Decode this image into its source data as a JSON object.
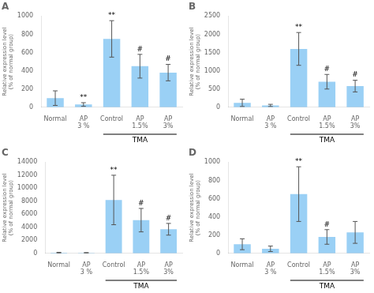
{
  "chart_data": [
    {
      "type": "bar",
      "title": "A",
      "categories": [
        "Normal",
        "AP\n3 %",
        "Control",
        "AP\n1.5%",
        "AP\n3%"
      ],
      "values": [
        100,
        30,
        750,
        450,
        380
      ],
      "errors": [
        80,
        20,
        200,
        130,
        90
      ],
      "ylim": [
        0,
        1000
      ],
      "yticks": [
        0,
        200,
        400,
        600,
        800,
        1000
      ],
      "ylabel": "Relative expression level\n(% of normal group)",
      "grid": false,
      "annotations": [
        {
          "text": "**",
          "x": "AP\n3 %"
        },
        {
          "text": "**",
          "x": "Control"
        },
        {
          "text": "#",
          "x": "AP\n1.5%"
        },
        {
          "text": "#",
          "x": "AP\n3%"
        },
        {
          "text": "TMA",
          "x": [
            "Control",
            "AP\n1.5%",
            "AP\n3%"
          ]
        }
      ]
    },
    {
      "type": "bar",
      "title": "B",
      "categories": [
        "Normal",
        "AP\n3 %",
        "Control",
        "AP\n1.5%",
        "AP\n3%"
      ],
      "values": [
        120,
        50,
        1600,
        700,
        580
      ],
      "errors": [
        100,
        30,
        450,
        200,
        160
      ],
      "ylim": [
        0,
        2500
      ],
      "yticks": [
        0,
        500,
        1000,
        1500,
        2000,
        2500
      ],
      "ylabel": "Relative expression level\n(% of normal group)",
      "grid": false,
      "annotations": [
        {
          "text": "**",
          "x": "Control"
        },
        {
          "text": "#",
          "x": "AP\n1.5%"
        },
        {
          "text": "#",
          "x": "AP\n3%"
        },
        {
          "text": "TMA",
          "x": [
            "Control",
            "AP\n1.5%",
            "AP\n3%"
          ]
        }
      ]
    },
    {
      "type": "bar",
      "title": "C",
      "categories": [
        "Normal",
        "AP\n3 %",
        "Control",
        "AP\n1.5%",
        "AP\n3%"
      ],
      "values": [
        100,
        80,
        8200,
        5100,
        3700
      ],
      "errors": [
        60,
        40,
        3800,
        1800,
        900
      ],
      "ylim": [
        0,
        14000
      ],
      "yticks": [
        0,
        2000,
        4000,
        6000,
        8000,
        10000,
        12000,
        14000
      ],
      "ylabel": "Relative expression level\n(% of normal group)",
      "grid": false,
      "annotations": [
        {
          "text": "**",
          "x": "Control"
        },
        {
          "text": "#",
          "x": "AP\n1.5%"
        },
        {
          "text": "#",
          "x": "AP\n3%"
        },
        {
          "text": "TMA",
          "x": [
            "Control",
            "AP\n1.5%",
            "AP\n3%"
          ]
        }
      ]
    },
    {
      "type": "bar",
      "title": "D",
      "categories": [
        "Normal",
        "AP\n3 %",
        "Control",
        "AP\n1.5%",
        "AP\n3%"
      ],
      "values": [
        100,
        50,
        650,
        180,
        230
      ],
      "errors": [
        60,
        30,
        300,
        80,
        120
      ],
      "ylim": [
        0,
        1000
      ],
      "yticks": [
        0,
        200,
        400,
        600,
        800,
        1000
      ],
      "ylabel": "Relative expression level\n(% of normal group)",
      "grid": false,
      "annotations": [
        {
          "text": "**",
          "x": "Control"
        },
        {
          "text": "#",
          "x": "AP\n1.5%"
        },
        {
          "text": "TMA",
          "x": [
            "Control",
            "AP\n1.5%",
            "AP\n3%"
          ]
        }
      ]
    }
  ]
}
